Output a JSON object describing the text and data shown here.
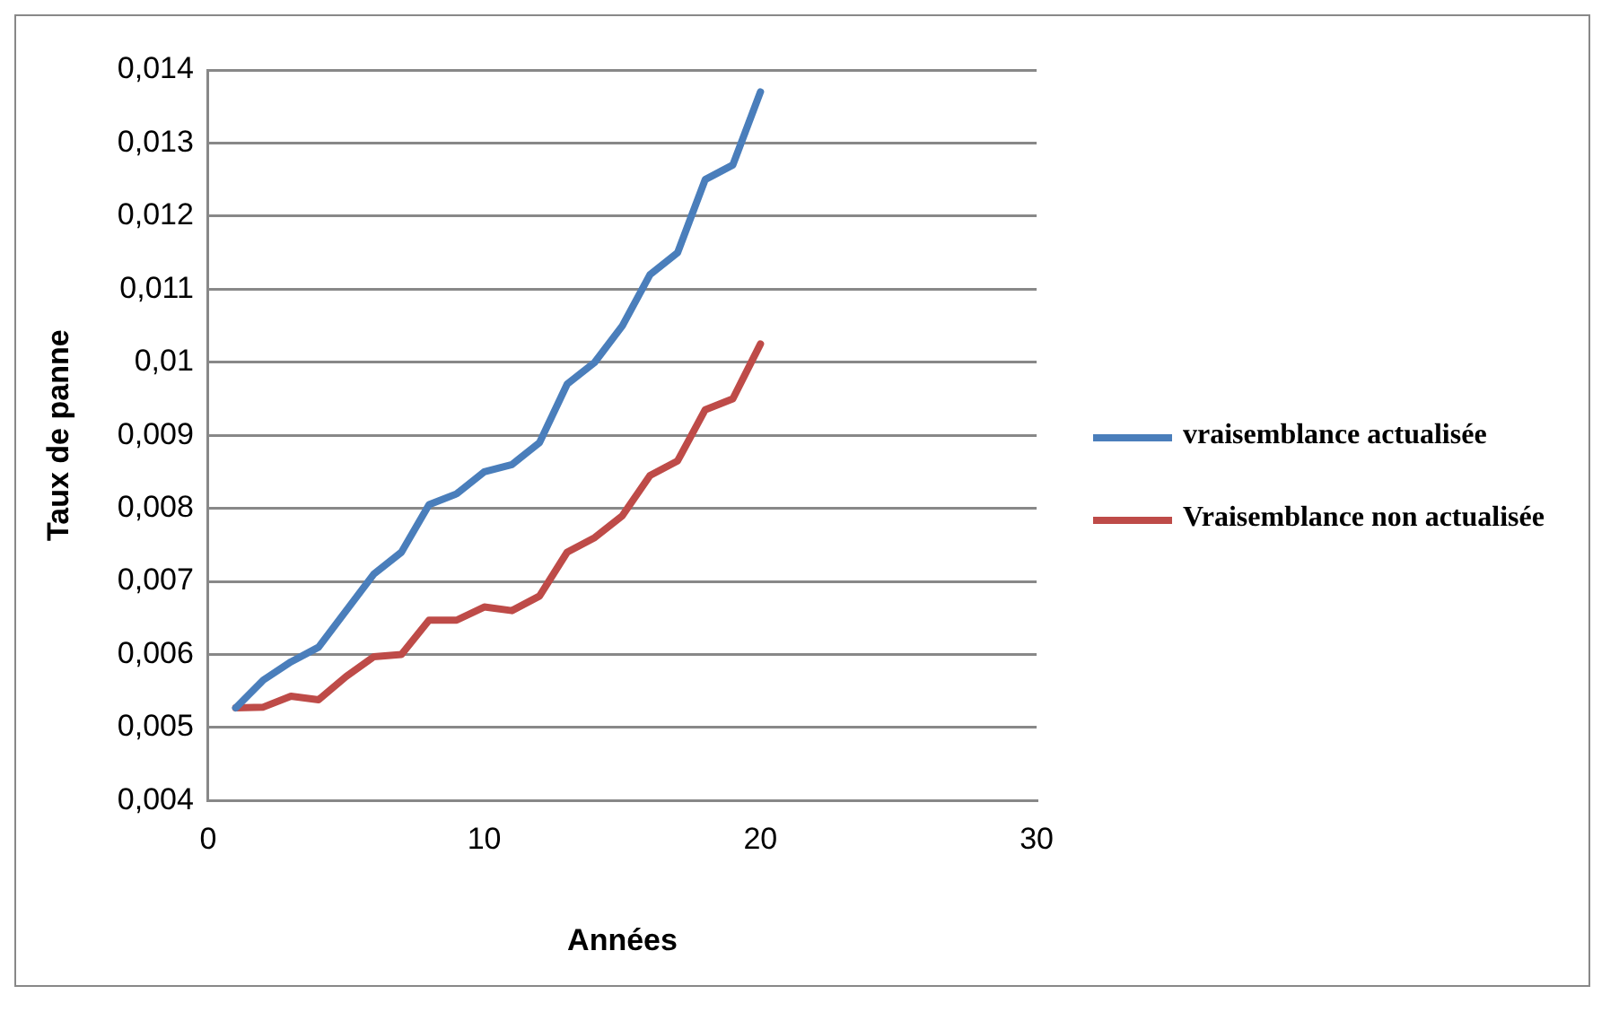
{
  "chart_data": {
    "type": "line",
    "xlabel": "Années",
    "ylabel": "Taux de panne",
    "x": [
      1,
      2,
      3,
      4,
      5,
      6,
      7,
      8,
      9,
      10,
      11,
      12,
      13,
      14,
      15,
      16,
      17,
      18,
      19,
      20
    ],
    "series": [
      {
        "name": "vraisemblance actualisée",
        "color": "#4a7ebb",
        "values": [
          0.00527,
          0.00565,
          0.0059,
          0.0061,
          0.0066,
          0.0071,
          0.0074,
          0.00805,
          0.0082,
          0.0085,
          0.0086,
          0.0089,
          0.0097,
          0.01,
          0.0105,
          0.0112,
          0.0115,
          0.0125,
          0.0127,
          0.0137
        ]
      },
      {
        "name": "Vraisemblance non actualisée",
        "color": "#be4b48",
        "values": [
          0.00527,
          0.00528,
          0.00543,
          0.00538,
          0.0057,
          0.00597,
          0.006,
          0.00647,
          0.00647,
          0.00665,
          0.0066,
          0.0068,
          0.0074,
          0.0076,
          0.0079,
          0.00845,
          0.00865,
          0.00935,
          0.0095,
          0.01025
        ]
      }
    ],
    "xlim": [
      0,
      30
    ],
    "xticks": [
      0,
      10,
      20,
      30
    ],
    "ylim": [
      0.004,
      0.014
    ],
    "yticks": [
      {
        "value": 0.004,
        "label": "0,004"
      },
      {
        "value": 0.005,
        "label": "0,005"
      },
      {
        "value": 0.006,
        "label": "0,006"
      },
      {
        "value": 0.007,
        "label": "0,007"
      },
      {
        "value": 0.008,
        "label": "0,008"
      },
      {
        "value": 0.009,
        "label": "0,009"
      },
      {
        "value": 0.01,
        "label": "0,01"
      },
      {
        "value": 0.011,
        "label": "0,011"
      },
      {
        "value": 0.012,
        "label": "0,012"
      },
      {
        "value": 0.013,
        "label": "0,013"
      },
      {
        "value": 0.014,
        "label": "0,014"
      }
    ],
    "grid": "y",
    "legend": "right",
    "marker": "none",
    "line_style": "solid"
  }
}
